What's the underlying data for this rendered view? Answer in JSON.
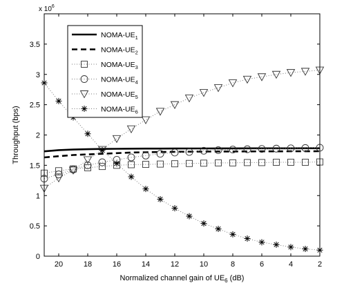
{
  "chart_data": {
    "type": "line",
    "title": "",
    "xlabel": {
      "prefix": "Normalized channel gain of UE",
      "sub": "6",
      "suffix": " (dB)"
    },
    "ylabel": "Throughput (bps)",
    "y_multiplier": {
      "base": "x 10",
      "exp": "6"
    },
    "x_reversed": true,
    "xlim": [
      21,
      2
    ],
    "ylim": [
      0,
      4
    ],
    "x_ticks": [
      20,
      18,
      16,
      14,
      12,
      10,
      8,
      6,
      4,
      2
    ],
    "y_ticks": [
      0,
      0.5,
      1,
      1.5,
      2,
      2.5,
      3,
      3.5
    ],
    "y_tick_labels": [
      "0",
      "0.5",
      "1",
      "1.5",
      "2",
      "2.5",
      "3",
      "3.5"
    ],
    "grid": false,
    "legend_position": "top-left",
    "x": [
      21,
      20,
      19,
      18,
      17,
      16,
      15,
      14,
      13,
      12,
      11,
      10,
      9,
      8,
      7,
      6,
      5,
      4,
      3,
      2
    ],
    "series": [
      {
        "name": "NOMA-UE",
        "sub": "1",
        "style": "solid-line",
        "color": "#000000",
        "values": [
          1.73,
          1.75,
          1.76,
          1.765,
          1.77,
          1.772,
          1.774,
          1.775,
          1.776,
          1.777,
          1.778,
          1.778,
          1.779,
          1.779,
          1.78,
          1.78,
          1.78,
          1.78,
          1.781,
          1.781
        ]
      },
      {
        "name": "NOMA-UE",
        "sub": "2",
        "style": "dashed-line",
        "color": "#000000",
        "values": [
          1.63,
          1.65,
          1.67,
          1.68,
          1.69,
          1.7,
          1.71,
          1.715,
          1.72,
          1.722,
          1.724,
          1.726,
          1.727,
          1.728,
          1.729,
          1.73,
          1.73,
          1.731,
          1.731,
          1.732
        ]
      },
      {
        "name": "NOMA-UE",
        "sub": "3",
        "style": "dotted-square",
        "color": "#000000",
        "values": [
          1.37,
          1.41,
          1.44,
          1.46,
          1.48,
          1.5,
          1.51,
          1.515,
          1.52,
          1.525,
          1.53,
          1.535,
          1.54,
          1.54,
          1.545,
          1.545,
          1.55,
          1.55,
          1.55,
          1.555
        ]
      },
      {
        "name": "NOMA-UE",
        "sub": "4",
        "style": "dotted-circle",
        "color": "#000000",
        "values": [
          1.28,
          1.35,
          1.43,
          1.5,
          1.55,
          1.59,
          1.63,
          1.66,
          1.69,
          1.71,
          1.72,
          1.74,
          1.75,
          1.76,
          1.765,
          1.77,
          1.775,
          1.78,
          1.785,
          1.79
        ]
      },
      {
        "name": "NOMA-UE",
        "sub": "5",
        "style": "dotted-triangle",
        "color": "#000000",
        "values": [
          1.12,
          1.29,
          1.42,
          1.59,
          1.76,
          1.94,
          2.1,
          2.25,
          2.39,
          2.5,
          2.61,
          2.7,
          2.78,
          2.86,
          2.92,
          2.96,
          3.0,
          3.03,
          3.05,
          3.07
        ]
      },
      {
        "name": "NOMA-UE",
        "sub": "6",
        "style": "dotted-star",
        "color": "#000000",
        "values": [
          2.86,
          2.56,
          2.29,
          2.02,
          1.75,
          1.53,
          1.31,
          1.11,
          0.94,
          0.79,
          0.66,
          0.54,
          0.45,
          0.36,
          0.29,
          0.23,
          0.19,
          0.15,
          0.12,
          0.1
        ]
      }
    ]
  }
}
